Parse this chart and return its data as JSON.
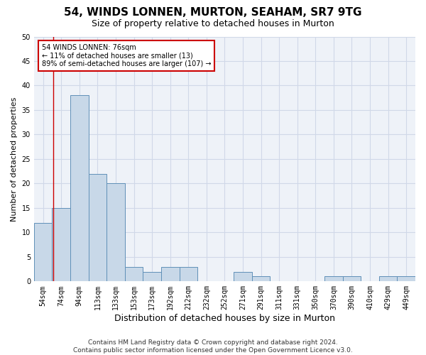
{
  "title": "54, WINDS LONNEN, MURTON, SEAHAM, SR7 9TG",
  "subtitle": "Size of property relative to detached houses in Murton",
  "xlabel": "Distribution of detached houses by size in Murton",
  "ylabel": "Number of detached properties",
  "categories": [
    "54sqm",
    "74sqm",
    "94sqm",
    "113sqm",
    "133sqm",
    "153sqm",
    "173sqm",
    "192sqm",
    "212sqm",
    "232sqm",
    "252sqm",
    "271sqm",
    "291sqm",
    "311sqm",
    "331sqm",
    "350sqm",
    "370sqm",
    "390sqm",
    "410sqm",
    "429sqm",
    "449sqm"
  ],
  "values": [
    12,
    15,
    38,
    22,
    20,
    3,
    2,
    3,
    3,
    0,
    0,
    2,
    1,
    0,
    0,
    0,
    1,
    1,
    0,
    1,
    1
  ],
  "bar_color": "#c8d8e8",
  "bar_edge_color": "#6090b8",
  "annotation_text_lines": [
    "54 WINDS LONNEN: 76sqm",
    "← 11% of detached houses are smaller (13)",
    "89% of semi-detached houses are larger (107) →"
  ],
  "annotation_box_color": "#ffffff",
  "annotation_box_edge_color": "#cc0000",
  "ylim": [
    0,
    50
  ],
  "yticks": [
    0,
    5,
    10,
    15,
    20,
    25,
    30,
    35,
    40,
    45,
    50
  ],
  "grid_color": "#d0d8e8",
  "bg_color": "#eef2f8",
  "footer_line1": "Contains HM Land Registry data © Crown copyright and database right 2024.",
  "footer_line2": "Contains public sector information licensed under the Open Government Licence v3.0.",
  "title_fontsize": 11,
  "subtitle_fontsize": 9,
  "xlabel_fontsize": 9,
  "ylabel_fontsize": 8,
  "tick_fontsize": 7,
  "footer_fontsize": 6.5,
  "red_line_x": 0.55
}
